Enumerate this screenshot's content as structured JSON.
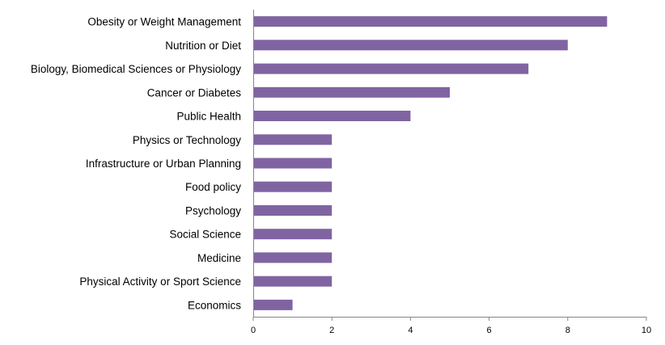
{
  "chart_data": {
    "type": "bar",
    "orientation": "horizontal",
    "categories": [
      "Obesity or Weight Management",
      "Nutrition or Diet",
      "Biology, Biomedical Sciences or Physiology",
      "Cancer or Diabetes",
      "Public Health",
      "Physics or Technology",
      "Infrastructure or Urban Planning",
      "Food policy",
      "Psychology",
      "Social Science",
      "Medicine",
      "Physical Activity or Sport Science",
      "Economics"
    ],
    "values": [
      9,
      8,
      7,
      5,
      4,
      2,
      2,
      2,
      2,
      2,
      2,
      2,
      1
    ],
    "xlim": [
      0,
      10
    ],
    "xticks": [
      "0",
      "2",
      "4",
      "6",
      "8",
      "10"
    ],
    "title": "",
    "xlabel": "",
    "ylabel": "",
    "grid": false,
    "legend": "none",
    "bar_color": "#8064A2"
  }
}
